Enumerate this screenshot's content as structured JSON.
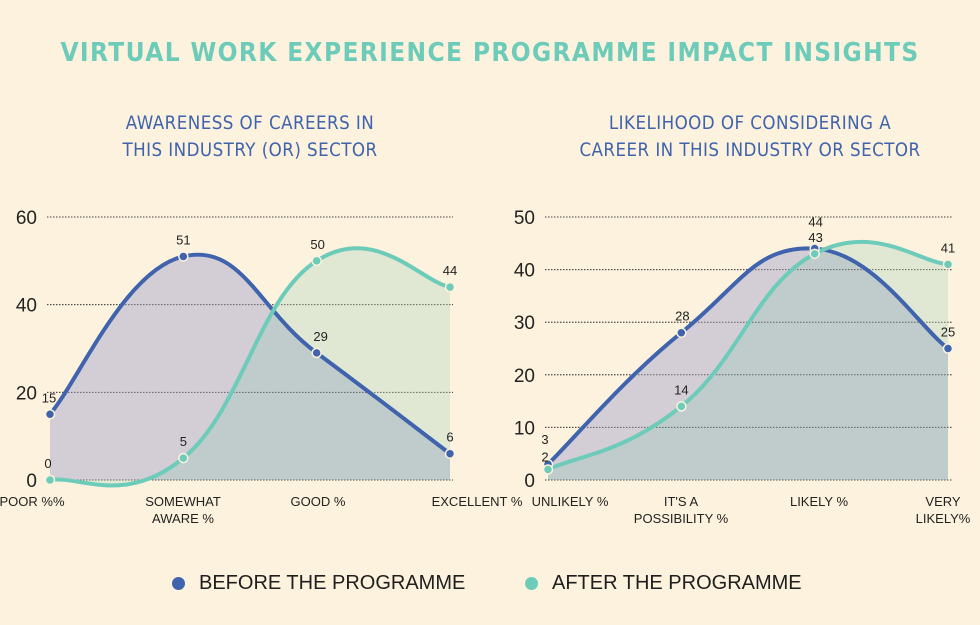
{
  "title": "VIRTUAL WORK EXPERIENCE PROGRAMME IMPACT INSIGHTS",
  "colors": {
    "background": "#fdf2dd",
    "title": "#6dcbb9",
    "subtitle": "#3f63ad",
    "before": "#3f63ad",
    "after": "#6dcbb9",
    "before_fill": "#d3cdd5",
    "after_fill": "#e0e8d3",
    "overlap_fill": "#bfcccb"
  },
  "legend": [
    {
      "label": "BEFORE THE PROGRAMME",
      "color": "#3f63ad"
    },
    {
      "label": "AFTER THE PROGRAMME",
      "color": "#6dcbb9"
    }
  ],
  "chart_data": [
    {
      "type": "area",
      "title": "AWARENESS OF CAREERS IN THIS INDUSTRY (OR) SECTOR",
      "title_lines": [
        "AWARENESS OF CAREERS IN",
        "THIS INDUSTRY (OR) SECTOR"
      ],
      "categories": [
        "POOR %%",
        "SOMEWHAT AWARE %",
        "GOOD %",
        "EXCELLENT %"
      ],
      "category_lines": [
        [
          "POOR %%"
        ],
        [
          "SOMEWHAT",
          "AWARE %"
        ],
        [
          "GOOD %"
        ],
        [
          "EXCELLENT %"
        ]
      ],
      "series": [
        {
          "name": "BEFORE THE PROGRAMME",
          "values": [
            15,
            51,
            29,
            6
          ]
        },
        {
          "name": "AFTER THE PROGRAMME",
          "values": [
            0,
            5,
            50,
            44
          ]
        }
      ],
      "ylim": [
        0,
        60
      ],
      "yticks": [
        0,
        20,
        40,
        60
      ],
      "grid": true,
      "xlabel": "",
      "ylabel": ""
    },
    {
      "type": "area",
      "title": "LIKELIHOOD OF CONSIDERING A CAREER IN THIS INDUSTRY OR SECTOR",
      "title_lines": [
        "LIKELIHOOD OF CONSIDERING A",
        "CAREER IN THIS INDUSTRY OR SECTOR"
      ],
      "categories": [
        "UNLIKELY %",
        "IT'S A POSSIBILITY %",
        "LIKELY %",
        "VERY LIKELY%"
      ],
      "category_lines": [
        [
          "UNLIKELY %"
        ],
        [
          "IT'S A",
          "POSSIBILITY %"
        ],
        [
          "LIKELY %"
        ],
        [
          "VERY",
          "LIKELY%"
        ]
      ],
      "series": [
        {
          "name": "BEFORE THE PROGRAMME",
          "values": [
            3,
            28,
            44,
            25
          ]
        },
        {
          "name": "AFTER THE PROGRAMME",
          "values": [
            2,
            14,
            43,
            41
          ]
        }
      ],
      "ylim": [
        0,
        50
      ],
      "yticks": [
        0,
        10,
        20,
        30,
        40,
        50
      ],
      "grid": true,
      "xlabel": "",
      "ylabel": ""
    }
  ]
}
